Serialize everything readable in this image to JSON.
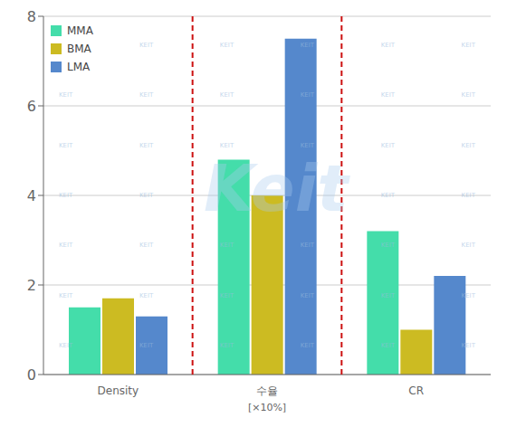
{
  "chart_data": {
    "type": "bar",
    "categories": [
      "Density",
      "수율",
      "CR"
    ],
    "series": [
      {
        "name": "MMA",
        "color": "#44ddaa",
        "values": [
          1.5,
          4.8,
          3.2
        ]
      },
      {
        "name": "BMA",
        "color": "#ccbb22",
        "values": [
          1.7,
          4.0,
          1.0
        ]
      },
      {
        "name": "LMA",
        "color": "#5588cc",
        "values": [
          1.3,
          7.5,
          2.2
        ]
      }
    ],
    "ylim": [
      0,
      8
    ],
    "yticks": [
      0,
      2,
      4,
      6,
      8
    ],
    "grid": true,
    "legend": "upper left",
    "annotations": [
      {
        "text": "[×10%]",
        "category": "수율"
      },
      {
        "type": "separator",
        "color": "#cc1111",
        "line_style": "dashed"
      },
      {
        "type": "watermark",
        "text": "Keit",
        "color": "#aaccee"
      },
      {
        "type": "watermark_tile",
        "text": "KEIT",
        "color": "#99bbdd"
      }
    ]
  }
}
